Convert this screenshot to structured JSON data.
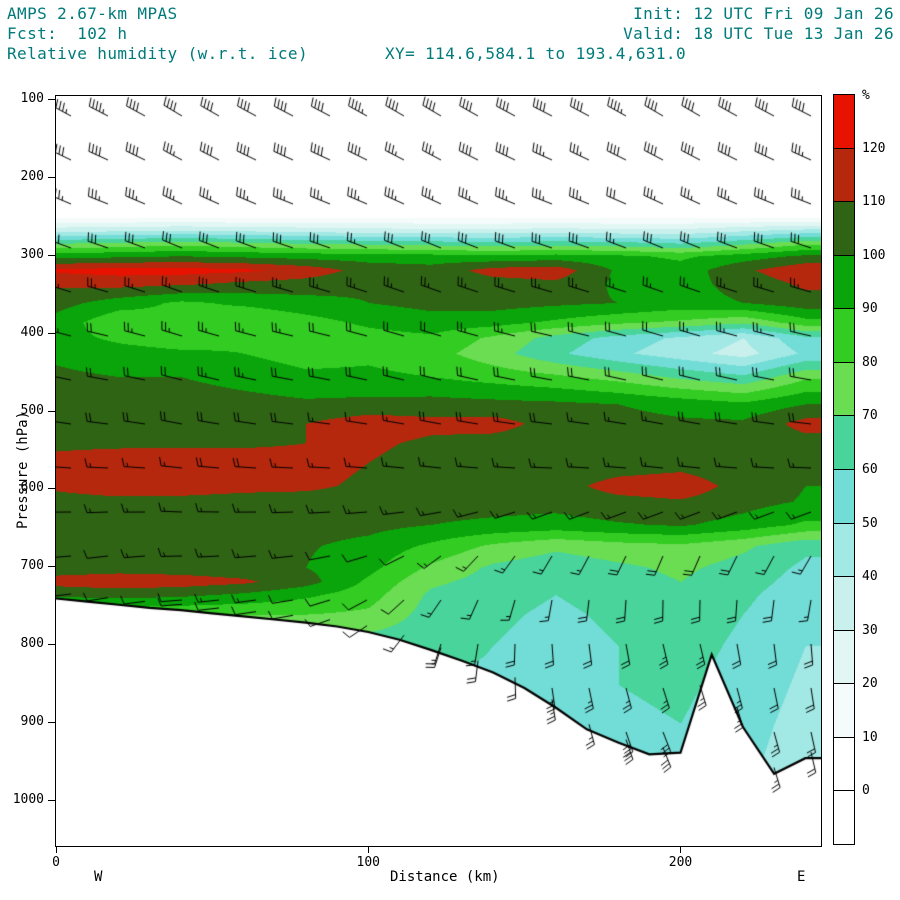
{
  "header": {
    "model": "AMPS 2.67-km MPAS",
    "fcst": "Fcst:  102 h",
    "field": "Relative humidity (w.r.t. ice)",
    "init": "Init: 12 UTC Fri 09 Jan 26",
    "valid": "Valid: 18 UTC Tue 13 Jan 26",
    "xy": "XY= 114.6,584.1 to 193.4,631.0",
    "text_color": "#007a7a"
  },
  "chart_data": {
    "type": "heatmap",
    "title": "Relative humidity (w.r.t. ice)",
    "xlabel": "Distance (km)",
    "ylabel": "Pressure (hPa)",
    "x_ticks": [
      0,
      100,
      200
    ],
    "x_range": [
      0,
      245
    ],
    "y_ticks": [
      100,
      200,
      300,
      400,
      500,
      600,
      700,
      800,
      900,
      1000
    ],
    "y_range": [
      100,
      1060
    ],
    "west_label": "W",
    "east_label": "E",
    "colorbar": {
      "unit": "%",
      "labels": [
        0,
        10,
        20,
        30,
        40,
        50,
        60,
        70,
        80,
        90,
        100,
        110,
        120
      ],
      "colors": [
        "#ffffff",
        "#ffffff",
        "#f4fbfa",
        "#e2f7f4",
        "#c9f0ec",
        "#a2e8e4",
        "#72dcd6",
        "#49d49b",
        "#6add52",
        "#33cc22",
        "#0aa50a",
        "#2f6414",
        "#b5280e",
        "#e81200"
      ]
    },
    "rh_field": {
      "x_km": [
        0,
        20,
        40,
        60,
        80,
        100,
        120,
        140,
        160,
        180,
        200,
        220,
        240
      ],
      "pressure_hpa": [
        100,
        200,
        250,
        268,
        285,
        300,
        318,
        335,
        360,
        385,
        405,
        425,
        455,
        490,
        515,
        540,
        565,
        595,
        615,
        645,
        672,
        700,
        718,
        735,
        760,
        800,
        850,
        900,
        960,
        1060
      ],
      "values": [
        [
          4,
          4,
          4,
          4,
          4,
          4,
          4,
          4,
          4,
          4,
          4,
          4,
          4
        ],
        [
          4,
          4,
          4,
          4,
          4,
          4,
          4,
          4,
          4,
          4,
          4,
          4,
          4
        ],
        [
          8,
          8,
          8,
          8,
          8,
          8,
          8,
          8,
          8,
          8,
          8,
          8,
          8
        ],
        [
          38,
          40,
          42,
          40,
          38,
          36,
          35,
          35,
          36,
          35,
          34,
          40,
          45
        ],
        [
          72,
          75,
          78,
          75,
          72,
          70,
          68,
          66,
          68,
          66,
          62,
          70,
          80
        ],
        [
          96,
          98,
          100,
          98,
          96,
          95,
          94,
          92,
          94,
          92,
          88,
          95,
          102
        ],
        [
          122,
          124,
          124,
          122,
          116,
          106,
          104,
          114,
          116,
          98,
          94,
          108,
          118
        ],
        [
          112,
          114,
          112,
          108,
          106,
          102,
          102,
          106,
          108,
          98,
          96,
          104,
          112
        ],
        [
          104,
          95,
          88,
          92,
          96,
          100,
          103,
          104,
          102,
          100,
          96,
          100,
          106
        ],
        [
          96,
          82,
          88,
          80,
          86,
          92,
          96,
          94,
          88,
          82,
          78,
          72,
          86
        ],
        [
          94,
          88,
          84,
          88,
          82,
          86,
          88,
          78,
          66,
          56,
          48,
          40,
          58
        ],
        [
          98,
          94,
          92,
          90,
          86,
          88,
          84,
          74,
          62,
          52,
          44,
          36,
          52
        ],
        [
          102,
          100,
          100,
          96,
          92,
          92,
          90,
          86,
          82,
          76,
          68,
          62,
          78
        ],
        [
          105,
          104,
          106,
          104,
          102,
          103,
          104,
          103,
          102,
          100,
          96,
          92,
          100
        ],
        [
          105,
          105,
          105,
          107,
          110,
          116,
          113,
          114,
          106,
          104,
          102,
          102,
          114
        ],
        [
          107,
          107,
          108,
          108,
          110,
          112,
          108,
          106,
          104,
          104,
          104,
          102,
          106
        ],
        [
          114,
          118,
          117,
          116,
          114,
          110,
          106,
          104,
          103,
          104,
          106,
          103,
          102
        ],
        [
          112,
          116,
          115,
          113,
          112,
          108,
          106,
          108,
          106,
          114,
          116,
          106,
          100
        ],
        [
          106,
          107,
          107,
          106,
          106,
          105,
          104,
          104,
          104,
          107,
          109,
          104,
          99
        ],
        [
          104,
          105,
          105,
          104,
          104,
          103,
          100,
          98,
          96,
          99,
          101,
          96,
          88
        ],
        [
          104,
          105,
          104,
          103,
          101,
          97,
          88,
          78,
          72,
          76,
          78,
          72,
          62
        ],
        [
          105,
          106,
          105,
          103,
          100,
          93,
          78,
          68,
          64,
          68,
          72,
          66,
          58
        ],
        [
          114,
          116,
          115,
          112,
          104,
          88,
          72,
          66,
          62,
          66,
          70,
          64,
          56
        ],
        [
          102,
          104,
          102,
          98,
          92,
          84,
          68,
          64,
          60,
          64,
          68,
          62,
          54
        ],
        [
          80,
          80,
          80,
          80,
          80,
          78,
          66,
          62,
          58,
          62,
          66,
          60,
          52
        ],
        [
          62,
          62,
          62,
          62,
          62,
          64,
          64,
          60,
          56,
          60,
          64,
          58,
          50
        ],
        [
          56,
          56,
          56,
          56,
          56,
          58,
          60,
          58,
          56,
          60,
          62,
          56,
          48
        ],
        [
          52,
          52,
          52,
          52,
          52,
          54,
          56,
          55,
          54,
          58,
          60,
          54,
          46
        ],
        [
          48,
          48,
          48,
          48,
          48,
          50,
          52,
          53,
          52,
          56,
          58,
          52,
          44
        ],
        [
          45,
          45,
          45,
          45,
          45,
          47,
          49,
          50,
          49,
          53,
          55,
          49,
          42
        ]
      ]
    },
    "terrain": {
      "x_km": [
        0,
        10,
        20,
        30,
        40,
        50,
        60,
        70,
        80,
        90,
        100,
        110,
        120,
        130,
        140,
        150,
        160,
        170,
        180,
        190,
        200,
        210,
        220,
        230,
        240
      ],
      "surface_pressure_hpa": [
        740,
        744,
        748,
        752,
        755,
        759,
        763,
        767,
        771,
        776,
        783,
        793,
        806,
        820,
        835,
        855,
        880,
        908,
        925,
        940,
        938,
        812,
        905,
        965,
        945
      ]
    },
    "wind": {
      "x_km": [
        0,
        20,
        40,
        60,
        80,
        100,
        120,
        140,
        160,
        180,
        200,
        220,
        240
      ],
      "pressure_hpa": [
        100,
        200,
        300,
        400,
        500,
        600,
        700,
        800,
        900,
        1000
      ],
      "speed_kt": [
        [
          45,
          45,
          42,
          40,
          42,
          45,
          42,
          40,
          42,
          45,
          42,
          40,
          42
        ],
        [
          40,
          38,
          36,
          38,
          40,
          36,
          35,
          38,
          36,
          35,
          38,
          40,
          36
        ],
        [
          30,
          28,
          30,
          32,
          28,
          26,
          28,
          30,
          28,
          26,
          28,
          30,
          28
        ],
        [
          25,
          22,
          24,
          26,
          22,
          20,
          22,
          24,
          22,
          20,
          22,
          24,
          22
        ],
        [
          20,
          18,
          20,
          22,
          18,
          16,
          18,
          20,
          18,
          16,
          18,
          20,
          18
        ],
        [
          15,
          15,
          16,
          18,
          15,
          14,
          15,
          16,
          15,
          14,
          15,
          16,
          15
        ],
        [
          12,
          12,
          14,
          15,
          12,
          10,
          12,
          14,
          15,
          18,
          20,
          18,
          15
        ],
        [
          10,
          10,
          10,
          10,
          10,
          12,
          15,
          18,
          20,
          22,
          25,
          22,
          18
        ],
        [
          10,
          10,
          10,
          10,
          10,
          12,
          18,
          22,
          25,
          28,
          30,
          25,
          20
        ],
        [
          10,
          10,
          10,
          10,
          10,
          12,
          18,
          25,
          28,
          30,
          32,
          28,
          22
        ]
      ],
      "dir_deg": [
        [
          300,
          298,
          302,
          300,
          298,
          300,
          302,
          300,
          298,
          300,
          302,
          300,
          298
        ],
        [
          295,
          293,
          297,
          295,
          293,
          295,
          297,
          295,
          293,
          295,
          297,
          295,
          293
        ],
        [
          290,
          288,
          292,
          290,
          288,
          290,
          292,
          290,
          288,
          290,
          292,
          290,
          288
        ],
        [
          285,
          283,
          287,
          285,
          283,
          285,
          287,
          285,
          283,
          285,
          287,
          285,
          283
        ],
        [
          280,
          278,
          282,
          280,
          278,
          280,
          282,
          280,
          278,
          280,
          282,
          280,
          278
        ],
        [
          272,
          270,
          274,
          272,
          270,
          272,
          274,
          272,
          270,
          272,
          274,
          272,
          270
        ],
        [
          265,
          262,
          268,
          265,
          262,
          250,
          230,
          210,
          200,
          195,
          190,
          195,
          200
        ],
        [
          260,
          258,
          262,
          260,
          258,
          230,
          200,
          185,
          175,
          170,
          165,
          170,
          175
        ],
        [
          255,
          253,
          257,
          255,
          253,
          220,
          190,
          175,
          168,
          162,
          158,
          162,
          168
        ],
        [
          250,
          248,
          252,
          250,
          248,
          215,
          185,
          170,
          165,
          158,
          155,
          158,
          165
        ]
      ]
    }
  }
}
